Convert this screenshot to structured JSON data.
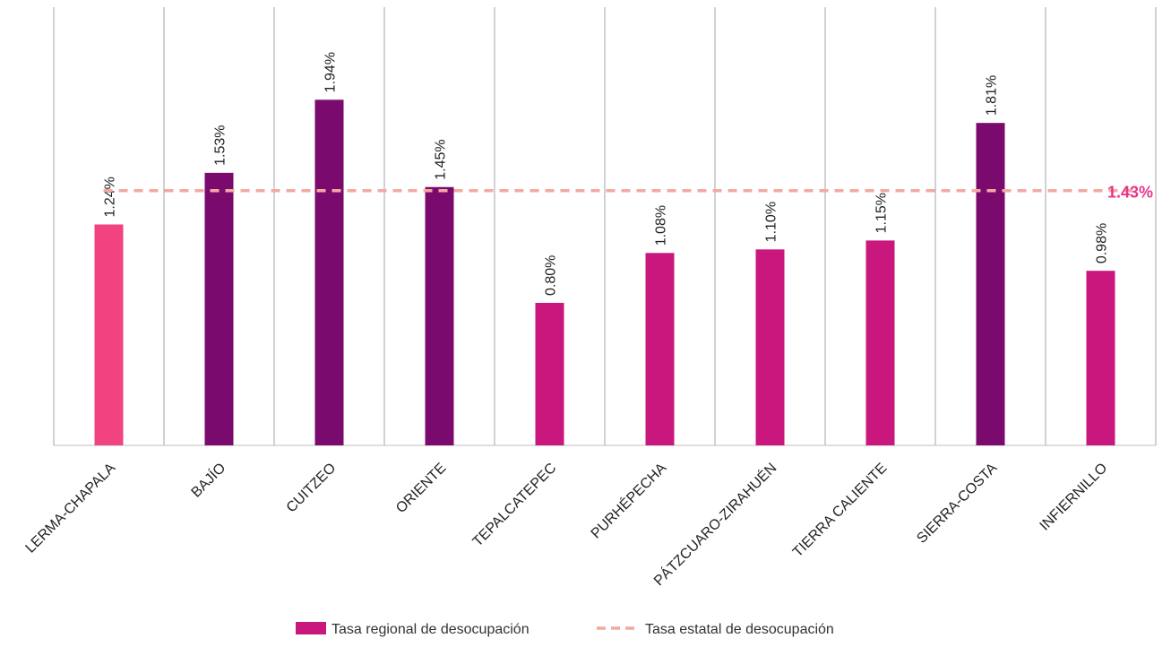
{
  "chart_data": {
    "type": "bar",
    "categories": [
      "LERMA-CHAPALA",
      "BAJÍO",
      "CUITZEO",
      "ORIENTE",
      "TEPALCATEPEC",
      "PURHÉPECHA",
      "PÁTZCUARO-ZIRAHUÉN",
      "TIERRA CALIENTE",
      "SIERRA-COSTA",
      "INFIERNILLO"
    ],
    "series": [
      {
        "name": "Tasa regional de desocupación",
        "values": [
          1.24,
          1.53,
          1.94,
          1.45,
          0.8,
          1.08,
          1.1,
          1.15,
          1.81,
          0.98
        ],
        "labels": [
          "1.24%",
          "1.53%",
          "1.94%",
          "1.45%",
          "0.80%",
          "1.08%",
          "1.10%",
          "1.15%",
          "1.81%",
          "0.98%"
        ],
        "colors": [
          "#f0437f",
          "#7a0a6e",
          "#7a0a6e",
          "#7a0a6e",
          "#c9177e",
          "#c9177e",
          "#c9177e",
          "#c9177e",
          "#7a0a6e",
          "#c9177e"
        ]
      }
    ],
    "reference_line": {
      "name": "Tasa estatal de desocupación",
      "value": 1.43,
      "label": "1.43%",
      "color": "#f4a9a0",
      "label_color": "#e8358a"
    },
    "ylim": [
      0,
      2.5
    ],
    "grid": "vertical category separators",
    "legend_position": "bottom",
    "legend": [
      {
        "name": "Tasa regional de desocupación",
        "kind": "bar",
        "color": "#c9177e"
      },
      {
        "name": "Tasa estatal de desocupación",
        "kind": "dashed-line",
        "color": "#f4a9a0"
      }
    ]
  }
}
